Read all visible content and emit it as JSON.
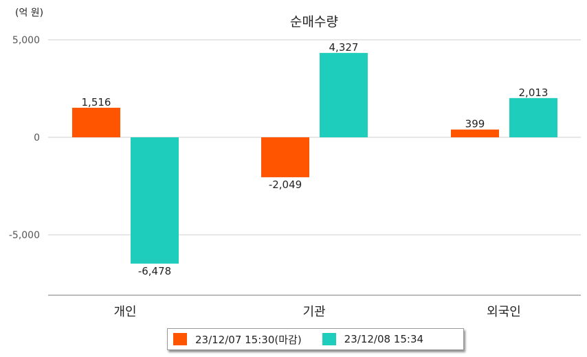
{
  "chart_data": {
    "type": "bar",
    "title": "순매수량",
    "unit_label": "(억 원)",
    "categories": [
      "개인",
      "기관",
      "외국인"
    ],
    "series": [
      {
        "name": "23/12/07 15:30(마감)",
        "color": "#FF5500",
        "values": [
          1516,
          -2049,
          399
        ]
      },
      {
        "name": "23/12/08 15:34",
        "color": "#1ECDBB",
        "values": [
          -6478,
          4327,
          2013
        ]
      }
    ],
    "data_labels": [
      [
        "1,516",
        "-2,049",
        "399"
      ],
      [
        "-6,478",
        "4,327",
        "2,013"
      ]
    ],
    "yticks": [
      5000,
      0,
      -5000
    ],
    "ytick_labels": [
      "5,000",
      "0",
      "-5,000"
    ],
    "ylim": [
      -8000,
      5000
    ],
    "grid": true,
    "legend_position": "bottom"
  }
}
